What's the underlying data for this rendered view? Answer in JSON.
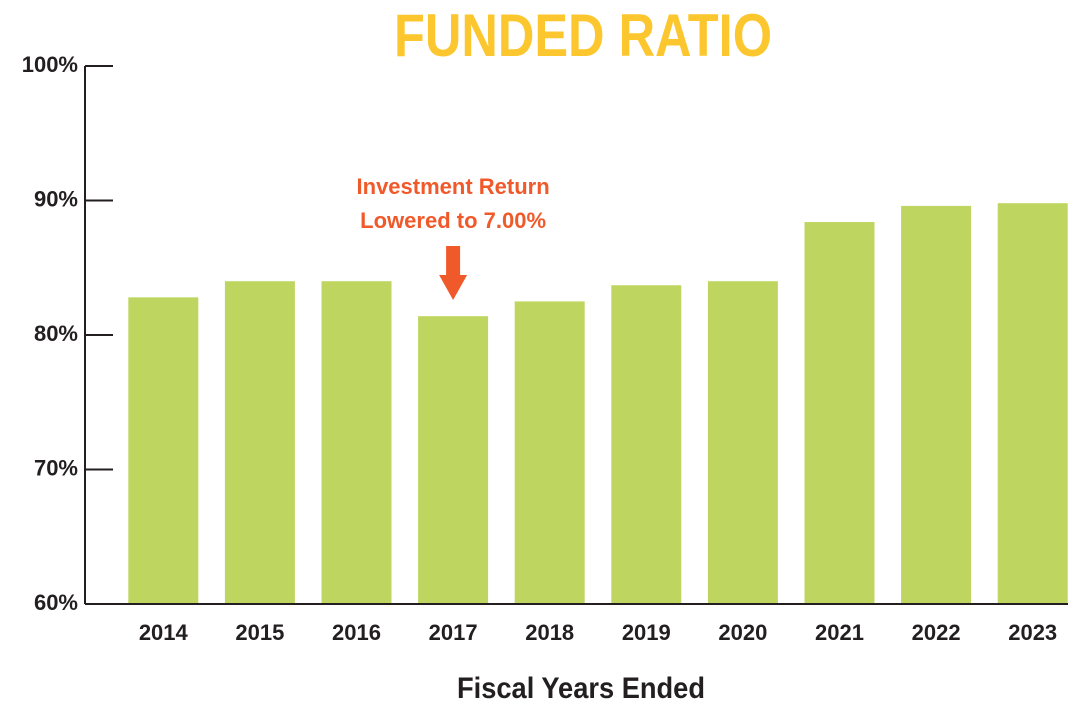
{
  "chart_data": {
    "type": "bar",
    "title": "FUNDED RATIO",
    "x_label": "Fiscal Years Ended",
    "categories": [
      "2014",
      "2015",
      "2016",
      "2017",
      "2018",
      "2019",
      "2020",
      "2021",
      "2022",
      "2023"
    ],
    "values": [
      82.8,
      84.0,
      84.0,
      81.4,
      82.5,
      83.7,
      84.0,
      88.4,
      89.6,
      89.8
    ],
    "color": "#bed660",
    "ylim": [
      60,
      100
    ],
    "yticks": [
      {
        "value": 60,
        "label": "60%"
      },
      {
        "value": 70,
        "label": "70%"
      },
      {
        "value": 80,
        "label": "80%"
      },
      {
        "value": 90,
        "label": "90%"
      },
      {
        "value": 100,
        "label": "100%"
      }
    ],
    "grid": false,
    "annotation": {
      "text": [
        "Investment Return",
        "Lowered to 7.00%"
      ],
      "at": "2017",
      "color": "#f05a2a"
    },
    "title_color": "#fcc72e"
  }
}
